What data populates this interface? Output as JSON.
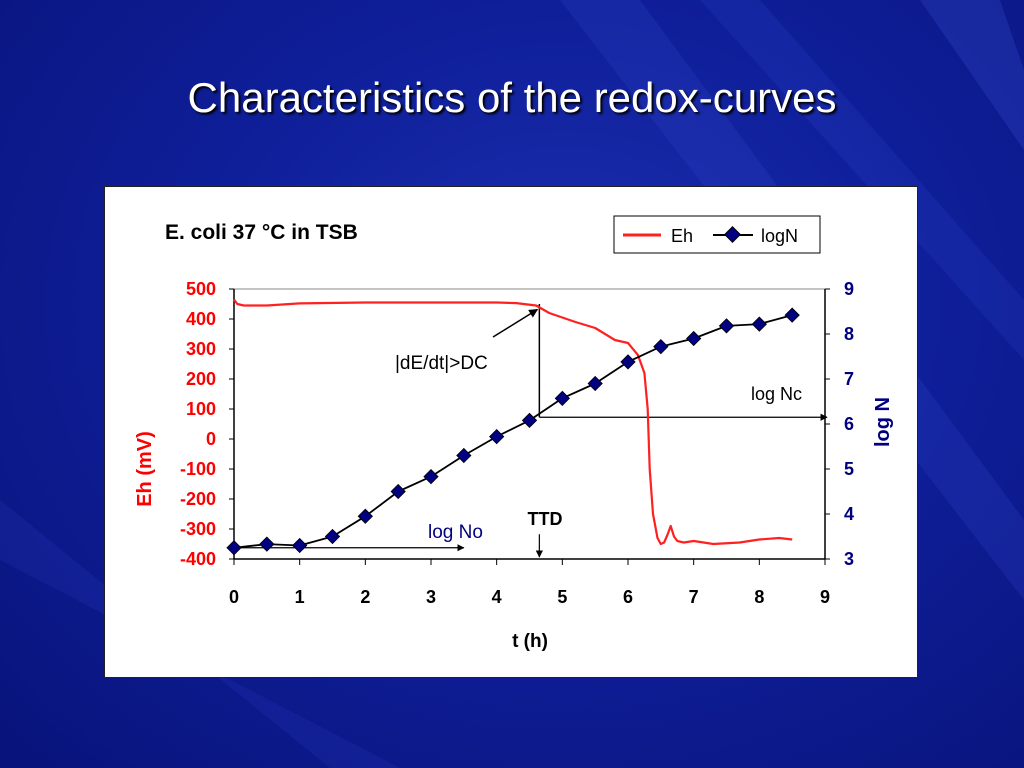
{
  "slide": {
    "title": "Characteristics of the redox-curves"
  },
  "colors": {
    "eh": "#ff2020",
    "logn": "#000080",
    "annotation": "#000080"
  },
  "chart_data": {
    "type": "line",
    "title": "E. coli 37 °C in TSB",
    "xlabel": "t (h)",
    "ylabel_left": "Eh (mV)",
    "ylabel_right": "log N",
    "xlim": [
      0,
      9
    ],
    "ylim_left": [
      -400,
      500
    ],
    "ylim_right": [
      3,
      9
    ],
    "x_ticks": [
      "0",
      "1",
      "2",
      "3",
      "4",
      "5",
      "6",
      "7",
      "8",
      "9"
    ],
    "y_left_ticks": [
      "500",
      "400",
      "300",
      "200",
      "100",
      "0",
      "-100",
      "-200",
      "-300",
      "-400"
    ],
    "y_right_ticks": [
      "9",
      "8",
      "7",
      "6",
      "5",
      "4",
      "3"
    ],
    "legend": {
      "placement": "top-right",
      "entries": [
        "Eh",
        "logN"
      ]
    },
    "series": [
      {
        "name": "Eh",
        "axis": "left",
        "marker": "none",
        "x": [
          0,
          0.05,
          0.15,
          0.5,
          1,
          2,
          3,
          4,
          4.3,
          4.6,
          4.8,
          5.0,
          5.2,
          5.5,
          5.8,
          6.0,
          6.15,
          6.25,
          6.3,
          6.33,
          6.38,
          6.45,
          6.5,
          6.55,
          6.6,
          6.65,
          6.7,
          6.75,
          6.85,
          7.0,
          7.3,
          7.7,
          8.0,
          8.3,
          8.5
        ],
        "y": [
          465,
          450,
          445,
          445,
          452,
          455,
          455,
          455,
          453,
          445,
          420,
          405,
          390,
          370,
          330,
          320,
          280,
          220,
          100,
          -100,
          -250,
          -330,
          -350,
          -345,
          -320,
          -290,
          -325,
          -340,
          -345,
          -340,
          -350,
          -345,
          -335,
          -330,
          -335
        ]
      },
      {
        "name": "logN",
        "axis": "right",
        "marker": "diamond",
        "x": [
          0,
          0.5,
          1,
          1.5,
          2,
          2.5,
          3,
          3.5,
          4,
          4.5,
          5,
          5.5,
          6,
          6.5,
          7,
          7.5,
          8,
          8.5
        ],
        "y": [
          3.25,
          3.33,
          3.3,
          3.5,
          3.95,
          4.5,
          4.83,
          5.3,
          5.72,
          6.08,
          6.57,
          6.9,
          7.38,
          7.72,
          7.9,
          8.18,
          8.22,
          8.42
        ]
      }
    ],
    "annotations": {
      "derivative": "|dE/dt|>DC",
      "log_nc": "log Nc",
      "log_no": "log No",
      "ttd": "TTD",
      "ttd_x": 4.65,
      "log_nc_y": 6.15,
      "log_no_y": 3.25
    }
  }
}
